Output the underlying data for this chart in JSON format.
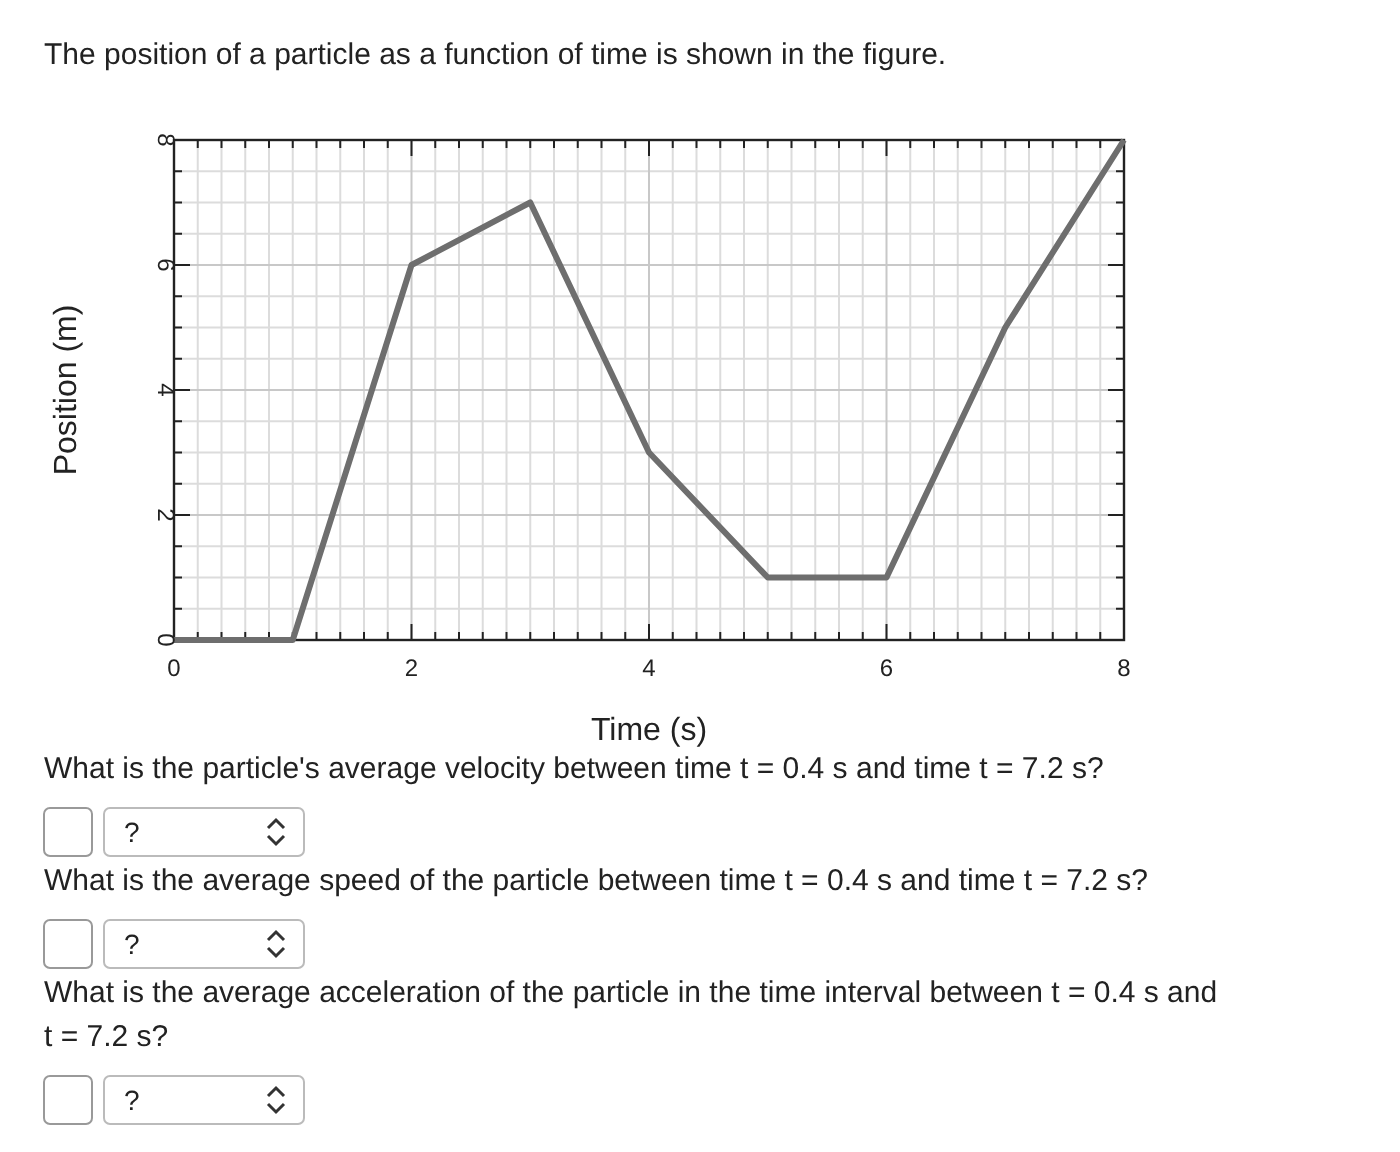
{
  "chart_data": {
    "type": "line",
    "title": "The position of a particle as a function of time is shown in the figure.",
    "xlabel": "Time (s)",
    "ylabel": "Position (m)",
    "x": [
      0,
      1,
      2,
      3,
      4,
      5,
      6,
      7,
      8
    ],
    "series": [
      {
        "color": "#6e6e6e",
        "values": [
          0,
          0,
          6,
          7,
          3,
          1,
          1,
          5,
          8
        ]
      }
    ],
    "xlim": [
      0,
      8
    ],
    "ylim": [
      0,
      8
    ],
    "xticks": [
      0,
      2,
      4,
      6,
      8
    ],
    "yticks": [
      0,
      2,
      4,
      6,
      8
    ],
    "grid": true,
    "marker": "none",
    "line_style": "solid",
    "annotations": [
      "What is the particle's average velocity between time t = 0.4 s and time t = 7.2 s?",
      "?",
      "What is the average speed of the particle between time t = 0.4 s and time t = 7.2 s?",
      "?",
      "What is the average acceleration of the particle in the time interval between t = 0.4 s and t = 7.2 s?",
      "?"
    ]
  }
}
